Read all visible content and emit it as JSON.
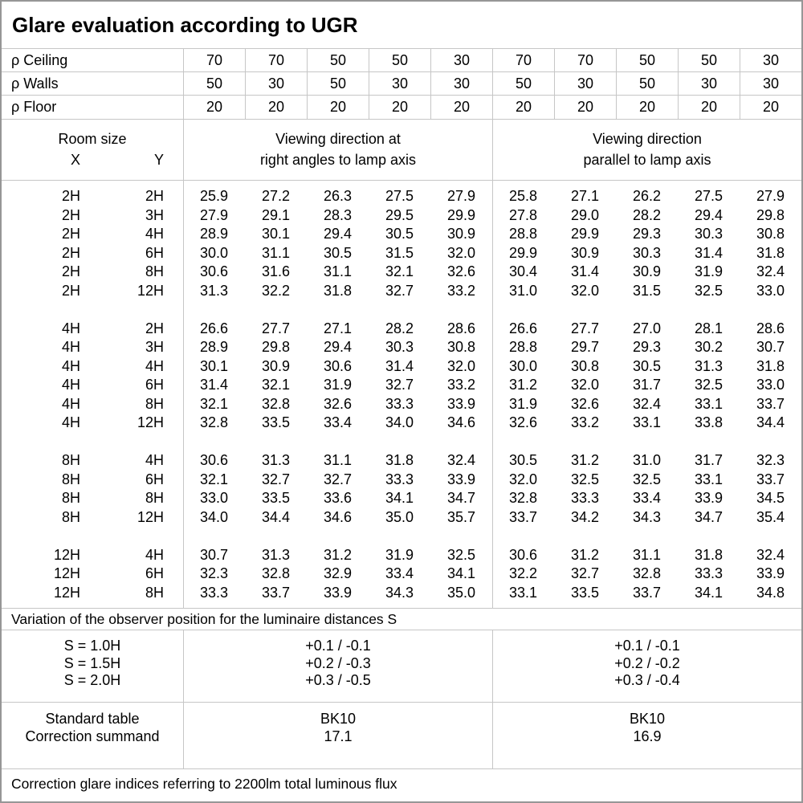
{
  "title": "Glare evaluation according to UGR",
  "reflectance": {
    "rows": [
      {
        "label": "ρ Ceiling",
        "values": [
          "70",
          "70",
          "50",
          "50",
          "30",
          "70",
          "70",
          "50",
          "50",
          "30"
        ]
      },
      {
        "label": "ρ Walls",
        "values": [
          "50",
          "30",
          "50",
          "30",
          "30",
          "50",
          "30",
          "50",
          "30",
          "30"
        ]
      },
      {
        "label": "ρ Floor",
        "values": [
          "20",
          "20",
          "20",
          "20",
          "20",
          "20",
          "20",
          "20",
          "20",
          "20"
        ]
      }
    ]
  },
  "header": {
    "room_size": "Room size",
    "x": "X",
    "y": "Y",
    "group1": [
      "Viewing direction at",
      "right angles to lamp axis"
    ],
    "group2": [
      "Viewing direction",
      "parallel to lamp axis"
    ]
  },
  "table": {
    "groups": [
      {
        "rows": [
          {
            "x": "2H",
            "y": "2H",
            "left": [
              "25.9",
              "27.2",
              "26.3",
              "27.5",
              "27.9"
            ],
            "right": [
              "25.8",
              "27.1",
              "26.2",
              "27.5",
              "27.9"
            ]
          },
          {
            "x": "2H",
            "y": "3H",
            "left": [
              "27.9",
              "29.1",
              "28.3",
              "29.5",
              "29.9"
            ],
            "right": [
              "27.8",
              "29.0",
              "28.2",
              "29.4",
              "29.8"
            ]
          },
          {
            "x": "2H",
            "y": "4H",
            "left": [
              "28.9",
              "30.1",
              "29.4",
              "30.5",
              "30.9"
            ],
            "right": [
              "28.8",
              "29.9",
              "29.3",
              "30.3",
              "30.8"
            ]
          },
          {
            "x": "2H",
            "y": "6H",
            "left": [
              "30.0",
              "31.1",
              "30.5",
              "31.5",
              "32.0"
            ],
            "right": [
              "29.9",
              "30.9",
              "30.3",
              "31.4",
              "31.8"
            ]
          },
          {
            "x": "2H",
            "y": "8H",
            "left": [
              "30.6",
              "31.6",
              "31.1",
              "32.1",
              "32.6"
            ],
            "right": [
              "30.4",
              "31.4",
              "30.9",
              "31.9",
              "32.4"
            ]
          },
          {
            "x": "2H",
            "y": "12H",
            "left": [
              "31.3",
              "32.2",
              "31.8",
              "32.7",
              "33.2"
            ],
            "right": [
              "31.0",
              "32.0",
              "31.5",
              "32.5",
              "33.0"
            ]
          }
        ]
      },
      {
        "rows": [
          {
            "x": "4H",
            "y": "2H",
            "left": [
              "26.6",
              "27.7",
              "27.1",
              "28.2",
              "28.6"
            ],
            "right": [
              "26.6",
              "27.7",
              "27.0",
              "28.1",
              "28.6"
            ]
          },
          {
            "x": "4H",
            "y": "3H",
            "left": [
              "28.9",
              "29.8",
              "29.4",
              "30.3",
              "30.8"
            ],
            "right": [
              "28.8",
              "29.7",
              "29.3",
              "30.2",
              "30.7"
            ]
          },
          {
            "x": "4H",
            "y": "4H",
            "left": [
              "30.1",
              "30.9",
              "30.6",
              "31.4",
              "32.0"
            ],
            "right": [
              "30.0",
              "30.8",
              "30.5",
              "31.3",
              "31.8"
            ]
          },
          {
            "x": "4H",
            "y": "6H",
            "left": [
              "31.4",
              "32.1",
              "31.9",
              "32.7",
              "33.2"
            ],
            "right": [
              "31.2",
              "32.0",
              "31.7",
              "32.5",
              "33.0"
            ]
          },
          {
            "x": "4H",
            "y": "8H",
            "left": [
              "32.1",
              "32.8",
              "32.6",
              "33.3",
              "33.9"
            ],
            "right": [
              "31.9",
              "32.6",
              "32.4",
              "33.1",
              "33.7"
            ]
          },
          {
            "x": "4H",
            "y": "12H",
            "left": [
              "32.8",
              "33.5",
              "33.4",
              "34.0",
              "34.6"
            ],
            "right": [
              "32.6",
              "33.2",
              "33.1",
              "33.8",
              "34.4"
            ]
          }
        ]
      },
      {
        "rows": [
          {
            "x": "8H",
            "y": "4H",
            "left": [
              "30.6",
              "31.3",
              "31.1",
              "31.8",
              "32.4"
            ],
            "right": [
              "30.5",
              "31.2",
              "31.0",
              "31.7",
              "32.3"
            ]
          },
          {
            "x": "8H",
            "y": "6H",
            "left": [
              "32.1",
              "32.7",
              "32.7",
              "33.3",
              "33.9"
            ],
            "right": [
              "32.0",
              "32.5",
              "32.5",
              "33.1",
              "33.7"
            ]
          },
          {
            "x": "8H",
            "y": "8H",
            "left": [
              "33.0",
              "33.5",
              "33.6",
              "34.1",
              "34.7"
            ],
            "right": [
              "32.8",
              "33.3",
              "33.4",
              "33.9",
              "34.5"
            ]
          },
          {
            "x": "8H",
            "y": "12H",
            "left": [
              "34.0",
              "34.4",
              "34.6",
              "35.0",
              "35.7"
            ],
            "right": [
              "33.7",
              "34.2",
              "34.3",
              "34.7",
              "35.4"
            ]
          }
        ]
      },
      {
        "rows": [
          {
            "x": "12H",
            "y": "4H",
            "left": [
              "30.7",
              "31.3",
              "31.2",
              "31.9",
              "32.5"
            ],
            "right": [
              "30.6",
              "31.2",
              "31.1",
              "31.8",
              "32.4"
            ]
          },
          {
            "x": "12H",
            "y": "6H",
            "left": [
              "32.3",
              "32.8",
              "32.9",
              "33.4",
              "34.1"
            ],
            "right": [
              "32.2",
              "32.7",
              "32.8",
              "33.3",
              "33.9"
            ]
          },
          {
            "x": "12H",
            "y": "8H",
            "left": [
              "33.3",
              "33.7",
              "33.9",
              "34.3",
              "35.0"
            ],
            "right": [
              "33.1",
              "33.5",
              "33.7",
              "34.1",
              "34.8"
            ]
          }
        ]
      }
    ]
  },
  "footer": {
    "variation_note": "Variation of the observer position for the luminaire distances S",
    "s_labels": [
      "S = 1.0H",
      "S = 1.5H",
      "S = 2.0H"
    ],
    "s_left": [
      "+0.1 / -0.1",
      "+0.2 / -0.3",
      "+0.3 / -0.5"
    ],
    "s_right": [
      "+0.1 / -0.1",
      "+0.2 / -0.2",
      "+0.3 / -0.4"
    ],
    "standard_table_label": "Standard table",
    "correction_summand_label": "Correction summand",
    "standard_table_left": "BK10",
    "standard_table_right": "BK10",
    "correction_summand_left": "17.1",
    "correction_summand_right": "16.9",
    "bottom_note": "Correction glare indices referring to 2200lm total luminous flux"
  }
}
